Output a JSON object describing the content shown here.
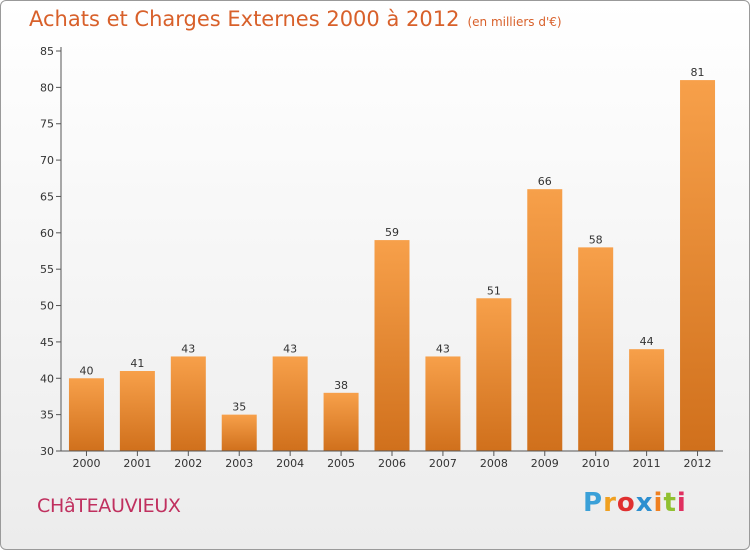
{
  "header": {
    "title": "Achats et Charges Externes 2000 à 2012",
    "unit": "(en milliers d'€)"
  },
  "footer": {
    "city": "CHâTEAUVIEUX",
    "brand_letters": [
      "P",
      "r",
      "o",
      "x",
      "i",
      "t",
      "i"
    ],
    "brand_colors": [
      "#3aa0d8",
      "#f0a020",
      "#e03030",
      "#2d8fd0",
      "#f08020",
      "#90c030",
      "#e03060"
    ]
  },
  "chart_data": {
    "type": "bar",
    "title": "Achats et Charges Externes 2000 à 2012",
    "subtitle": "(en milliers d'€)",
    "categories": [
      "2000",
      "2001",
      "2002",
      "2003",
      "2004",
      "2005",
      "2006",
      "2007",
      "2008",
      "2009",
      "2010",
      "2011",
      "2012"
    ],
    "values": [
      40,
      41,
      43,
      35,
      43,
      38,
      59,
      43,
      51,
      66,
      58,
      44,
      81
    ],
    "ylim": [
      30,
      85
    ],
    "yticks": [
      30,
      35,
      40,
      45,
      50,
      55,
      60,
      65,
      70,
      75,
      80,
      85
    ],
    "grid": false,
    "bar_color_top": "#f7a04a",
    "bar_color_bottom": "#d0701c",
    "xlabel": "",
    "ylabel": ""
  }
}
